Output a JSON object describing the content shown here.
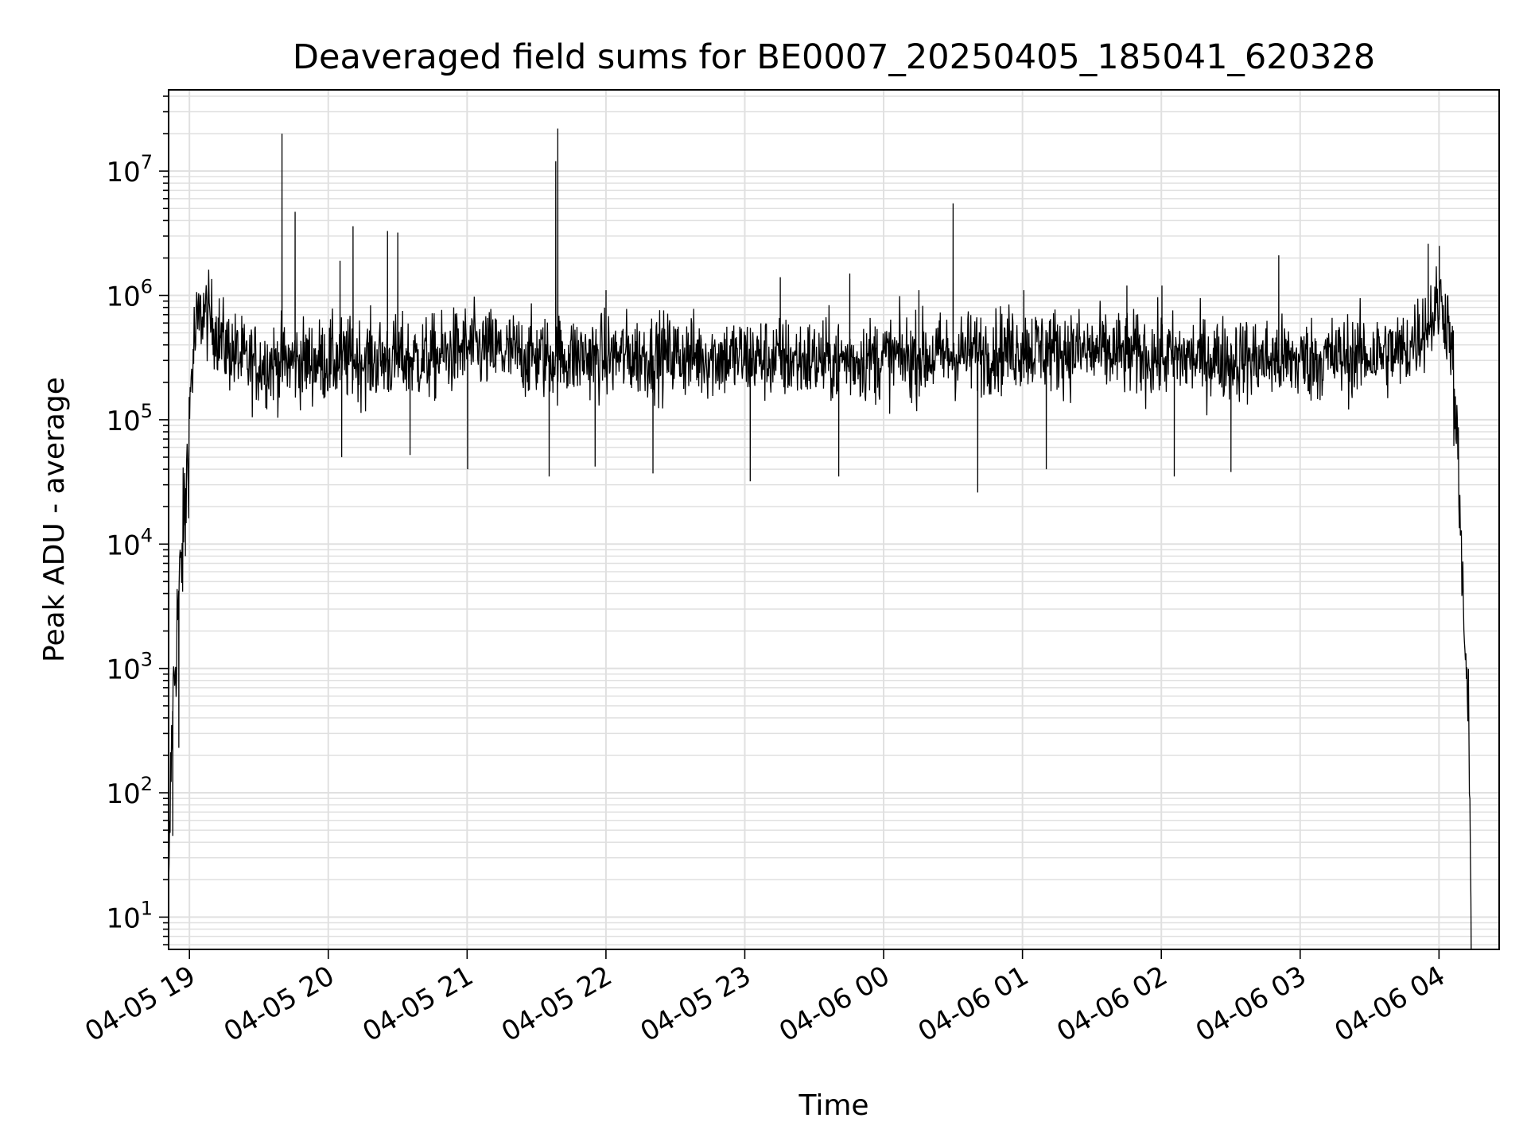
{
  "chart_data": {
    "type": "line",
    "title": "Deaveraged field sums for BE0007_20250405_185041_620328",
    "xlabel": "Time",
    "ylabel": "Peak ADU - average",
    "yscale": "log",
    "ylim": [
      5.5,
      45000000
    ],
    "xlim": [
      "2025-04-05 18:51",
      "2025-04-06 04:26"
    ],
    "grid": "on (major and minor)",
    "line_color": "#000000",
    "grid_color": "#e0e0e0",
    "x_ticks": [
      "04-05 19",
      "04-05 20",
      "04-05 21",
      "04-05 22",
      "04-05 23",
      "04-06 00",
      "04-06 01",
      "04-06 02",
      "04-06 03",
      "04-06 04"
    ],
    "y_ticks": [
      {
        "value": 10,
        "base": "10",
        "exp": "1"
      },
      {
        "value": 100,
        "base": "10",
        "exp": "2"
      },
      {
        "value": 1000,
        "base": "10",
        "exp": "3"
      },
      {
        "value": 10000,
        "base": "10",
        "exp": "4"
      },
      {
        "value": 100000,
        "base": "10",
        "exp": "5"
      },
      {
        "value": 1000000,
        "base": "10",
        "exp": "6"
      },
      {
        "value": 10000000,
        "base": "10",
        "exp": "7"
      }
    ],
    "series": [
      {
        "baseline": [
          {
            "x": "2025-04-05 18:51",
            "y": 10
          },
          {
            "x": "2025-04-05 18:52",
            "y": 150
          },
          {
            "x": "2025-04-05 18:53",
            "y": 600
          },
          {
            "x": "2025-04-05 18:54",
            "y": 1200
          },
          {
            "x": "2025-04-05 18:55",
            "y": 3000
          },
          {
            "x": "2025-04-05 18:57",
            "y": 9000
          },
          {
            "x": "2025-04-05 18:59",
            "y": 40000
          },
          {
            "x": "2025-04-05 19:01",
            "y": 250000
          },
          {
            "x": "2025-04-05 19:03",
            "y": 550000
          },
          {
            "x": "2025-04-05 19:06",
            "y": 750000
          },
          {
            "x": "2025-04-05 19:10",
            "y": 600000
          },
          {
            "x": "2025-04-05 19:15",
            "y": 400000
          },
          {
            "x": "2025-04-05 19:25",
            "y": 280000
          },
          {
            "x": "2025-04-05 20:00",
            "y": 300000
          },
          {
            "x": "2025-04-05 20:45",
            "y": 310000
          },
          {
            "x": "2025-04-05 21:00",
            "y": 380000
          },
          {
            "x": "2025-04-05 21:30",
            "y": 320000
          },
          {
            "x": "2025-04-05 22:30",
            "y": 330000
          },
          {
            "x": "2025-04-05 23:30",
            "y": 300000
          },
          {
            "x": "2025-04-06 00:20",
            "y": 320000
          },
          {
            "x": "2025-04-06 01:00",
            "y": 380000
          },
          {
            "x": "2025-04-06 02:00",
            "y": 320000
          },
          {
            "x": "2025-04-06 03:00",
            "y": 300000
          },
          {
            "x": "2025-04-06 03:45",
            "y": 350000
          },
          {
            "x": "2025-04-06 03:55",
            "y": 600000
          },
          {
            "x": "2025-04-06 04:01",
            "y": 900000
          },
          {
            "x": "2025-04-06 04:05",
            "y": 500000
          },
          {
            "x": "2025-04-06 04:08",
            "y": 50000
          },
          {
            "x": "2025-04-06 04:11",
            "y": 2000
          },
          {
            "x": "2025-04-06 04:13",
            "y": 200
          },
          {
            "x": "2025-04-06 04:14",
            "y": 5
          }
        ],
        "spikes": [
          {
            "x": "2025-04-05 18:58",
            "y": 8000
          },
          {
            "x": "2025-04-05 19:40",
            "y": 20000000
          },
          {
            "x": "2025-04-05 19:45",
            "y": 4700000
          },
          {
            "x": "2025-04-05 20:05",
            "y": 1900000
          },
          {
            "x": "2025-04-05 20:10",
            "y": 3600000
          },
          {
            "x": "2025-04-05 20:25",
            "y": 3300000
          },
          {
            "x": "2025-04-05 20:30",
            "y": 3200000
          },
          {
            "x": "2025-04-05 21:38",
            "y": 12000000
          },
          {
            "x": "2025-04-05 21:39",
            "y": 22000000
          },
          {
            "x": "2025-04-05 22:00",
            "y": 1100000
          },
          {
            "x": "2025-04-05 23:15",
            "y": 1400000
          },
          {
            "x": "2025-04-05 23:45",
            "y": 1500000
          },
          {
            "x": "2025-04-06 00:15",
            "y": 1100000
          },
          {
            "x": "2025-04-06 00:30",
            "y": 5500000
          },
          {
            "x": "2025-04-06 01:00",
            "y": 1100000
          },
          {
            "x": "2025-04-06 01:45",
            "y": 1200000
          },
          {
            "x": "2025-04-06 02:00",
            "y": 1200000
          },
          {
            "x": "2025-04-06 02:50",
            "y": 2100000
          },
          {
            "x": "2025-04-06 03:55",
            "y": 2600000
          },
          {
            "x": "2025-04-06 04:00",
            "y": 2500000
          }
        ],
        "dips": [
          {
            "x": "2025-04-05 18:52",
            "y": 45
          },
          {
            "x": "2025-04-05 18:55",
            "y": 230
          },
          {
            "x": "2025-04-05 20:05",
            "y": 50000
          },
          {
            "x": "2025-04-05 20:35",
            "y": 52000
          },
          {
            "x": "2025-04-05 21:00",
            "y": 40000
          },
          {
            "x": "2025-04-05 21:35",
            "y": 35000
          },
          {
            "x": "2025-04-05 21:55",
            "y": 42000
          },
          {
            "x": "2025-04-05 22:20",
            "y": 37000
          },
          {
            "x": "2025-04-05 23:02",
            "y": 32000
          },
          {
            "x": "2025-04-05 23:40",
            "y": 35000
          },
          {
            "x": "2025-04-06 00:40",
            "y": 26000
          },
          {
            "x": "2025-04-06 01:10",
            "y": 40000
          },
          {
            "x": "2025-04-06 02:05",
            "y": 35000
          },
          {
            "x": "2025-04-06 02:30",
            "y": 38000
          }
        ]
      }
    ]
  }
}
